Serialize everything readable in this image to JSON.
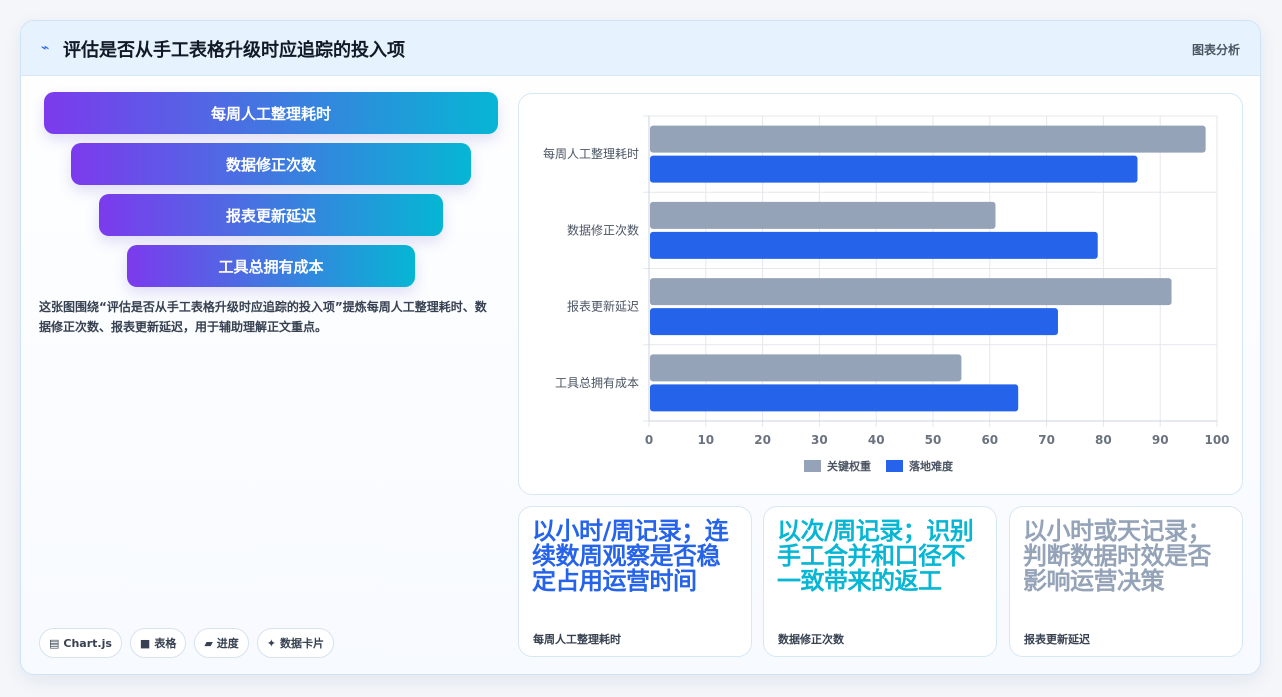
{
  "header": {
    "icon": "trend-line-icon",
    "title": "评估是否从手工表格升级时应追踪的投入项",
    "tag": "图表分析"
  },
  "funnel": [
    "每周人工整理耗时",
    "数据修正次数",
    "报表更新延迟",
    "工具总拥有成本"
  ],
  "description": "这张图围绕“评估是否从手工表格升级时应追踪的投入项”提炼每周人工整理耗时、数据修正次数、报表更新延迟，用于辅助理解正文重点。",
  "chips": [
    {
      "icon": "▤",
      "label": "Chart.js"
    },
    {
      "icon": "■",
      "label": "表格"
    },
    {
      "icon": "▰",
      "label": "进度"
    },
    {
      "icon": "✦",
      "label": "数据卡片"
    }
  ],
  "chart_data": {
    "type": "bar",
    "orientation": "horizontal",
    "categories": [
      "每周人工整理耗时",
      "数据修正次数",
      "报表更新延迟",
      "工具总拥有成本"
    ],
    "series": [
      {
        "name": "关键权重",
        "values": [
          98,
          61,
          92,
          55
        ],
        "color": "#94a3b8"
      },
      {
        "name": "落地难度",
        "values": [
          86,
          79,
          72,
          65
        ],
        "color": "#2563eb"
      }
    ],
    "xlim": [
      0,
      100
    ],
    "xticks": [
      0,
      10,
      20,
      30,
      40,
      50,
      60,
      70,
      80,
      90,
      100
    ],
    "grid": true,
    "legend": "bottom"
  },
  "stats": [
    {
      "text": "以小时/周记录；连续数周观察是否稳定占用运营时间",
      "label": "每周人工整理耗时",
      "color": "#2563eb"
    },
    {
      "text": "以次/周记录；识别手工合并和口径不一致带来的返工",
      "label": "数据修正次数",
      "color": "#06b6d4"
    },
    {
      "text": "以小时或天记录；判断数据时效是否影响运营决策",
      "label": "报表更新延迟",
      "color": "#94a3b8"
    }
  ]
}
